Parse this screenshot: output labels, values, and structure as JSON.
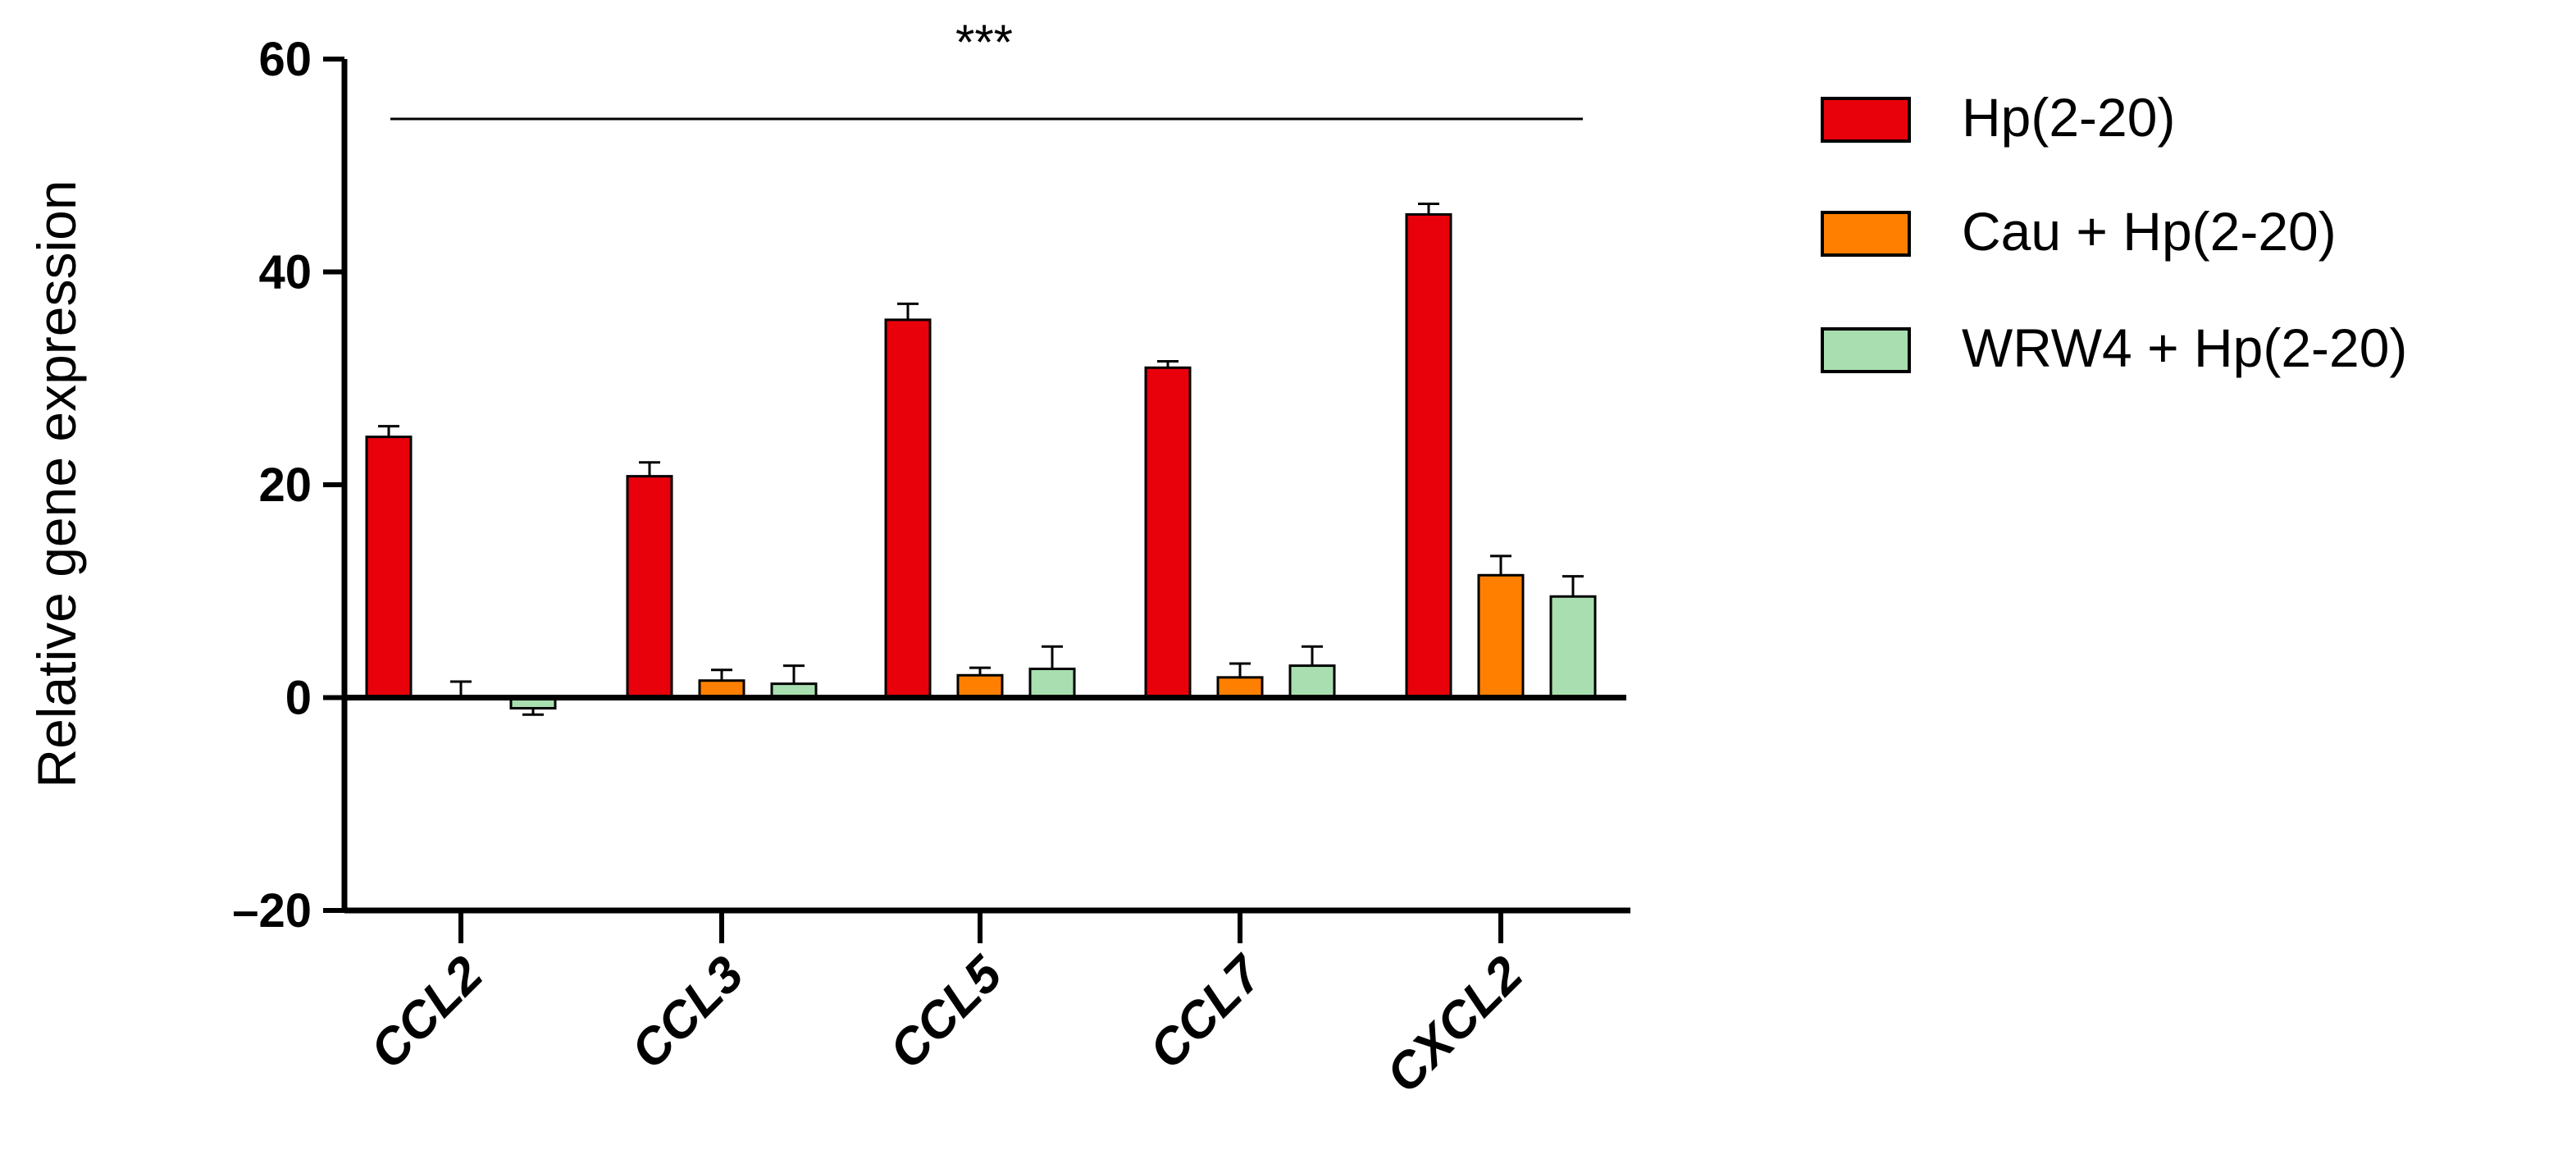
{
  "chart_data": {
    "type": "bar",
    "title": "",
    "xlabel": "",
    "ylabel": "Relative gene expression",
    "ylim": [
      -20,
      60
    ],
    "yticks": [
      -20,
      0,
      20,
      40,
      60
    ],
    "ytick_labels": [
      "–20",
      "0",
      "20",
      "40",
      "60"
    ],
    "categories": [
      "CCL2",
      "CCL3",
      "CCL5",
      "CCL7",
      "CXCL2"
    ],
    "series": [
      {
        "name": "Hp(2-20)",
        "color": "#e8000b",
        "values": [
          24.5,
          20.8,
          35.5,
          31.0,
          45.4
        ],
        "errors": [
          1.0,
          1.3,
          1.5,
          0.6,
          1.0
        ]
      },
      {
        "name": "Cau + Hp(2-20)",
        "color": "#ff8000",
        "values": [
          0.0,
          1.6,
          2.1,
          1.9,
          11.5
        ],
        "errors": [
          1.5,
          1.0,
          0.7,
          1.3,
          1.8
        ]
      },
      {
        "name": "WRW4 + Hp(2-20)",
        "color": "#a8deb0",
        "values": [
          -1.0,
          1.3,
          2.7,
          3.0,
          9.5
        ],
        "errors": [
          0.6,
          1.7,
          2.1,
          1.8,
          1.9
        ]
      }
    ],
    "significance": {
      "label": "***"
    },
    "grid": false,
    "legend_position": "top-right"
  }
}
